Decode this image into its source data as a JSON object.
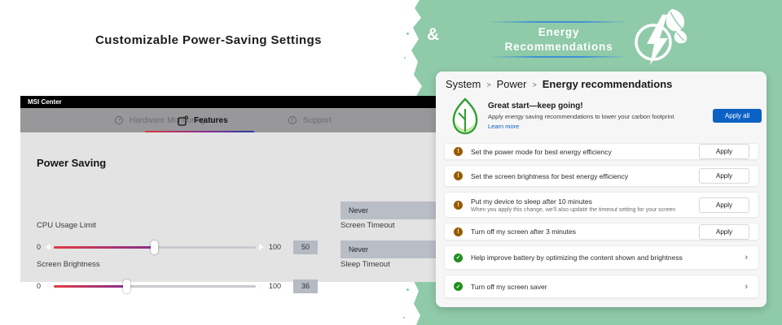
{
  "left": {
    "title": "Customizable Power-Saving Settings",
    "msi": {
      "window_title": "MSI Center",
      "tabs": {
        "hardware": "Hardware Monitoring",
        "features": "Features",
        "support": "Support"
      },
      "section_title": "Power Saving",
      "sliders": [
        {
          "label": "CPU Usage Limit",
          "min": "0",
          "max": "100",
          "value": "50",
          "percent": 50
        },
        {
          "label": "Screen Brightness",
          "min": "0",
          "max": "100",
          "value": "36",
          "percent": 36
        }
      ],
      "dropdowns": [
        {
          "label": "Screen Timeout",
          "value": "Never"
        },
        {
          "label": "Sleep Timeout",
          "value": "Never"
        }
      ]
    }
  },
  "connector": "&",
  "right": {
    "banner": {
      "title_line1": "Energy",
      "title_line2": "Recommendations"
    },
    "settings": {
      "breadcrumb": {
        "level1": "System",
        "level2": "Power",
        "level3": "Energy recommendations"
      },
      "hero": {
        "title": "Great start—keep going!",
        "description": "Apply energy saving recommendations to lower your carbon footprint",
        "link": "Learn more",
        "apply_all": "Apply all"
      },
      "rows": [
        {
          "status": "warning",
          "text": "Set the power mode for best energy efficiency",
          "action": "Apply"
        },
        {
          "status": "warning",
          "text": "Set the screen brightness for best energy efficiency",
          "action": "Apply"
        },
        {
          "status": "warning",
          "text": "Put my device to sleep after 10 minutes",
          "subtext": "When you apply this change, we'll also update the timeout setting for your screen",
          "action": "Apply"
        },
        {
          "status": "warning",
          "text": "Turn off my screen after 3 minutes",
          "action": "Apply"
        },
        {
          "status": "done",
          "text": "Help improve battery by optimizing the content shown and brightness",
          "action": "chevron"
        },
        {
          "status": "done",
          "text": "Turn off my screen saver",
          "action": "chevron"
        }
      ]
    }
  },
  "glyphs": {
    "breadcrumb_separator": ">",
    "chevron": "›",
    "warning_mark": "!",
    "check_mark": "✓"
  },
  "colors": {
    "panel_green": "#8fcaa9",
    "accent_blue": "#0b62c4",
    "warning_orange": "#955c00",
    "success_green": "#1d8f1d",
    "slider_gradient_start": "#e13b42",
    "slider_gradient_end": "#84308f",
    "banner_line_blue": "#3f8fd6"
  }
}
